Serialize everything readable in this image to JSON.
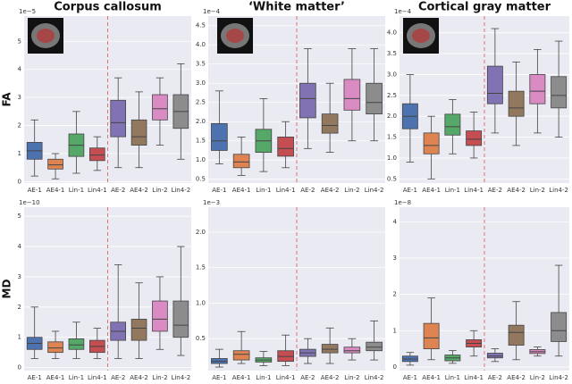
{
  "chart_data": [
    {
      "type": "box",
      "title": "Corpus callosum",
      "ylabel": "FA",
      "offset_label": "1e−5",
      "categories": [
        "AE-1",
        "AE4-1",
        "Lin-1",
        "Lin4-1",
        "AE-2",
        "AE4-2",
        "Lin-2",
        "Lin4-2"
      ],
      "colors": [
        "#4c72b0",
        "#dd8452",
        "#55a868",
        "#c44e52",
        "#8172b3",
        "#937860",
        "#da8bc3",
        "#8c8c8c"
      ],
      "whislo": [
        0.2,
        0.1,
        0.3,
        0.4,
        0.5,
        0.5,
        1.3,
        0.8
      ],
      "q1": [
        0.8,
        0.45,
        0.9,
        0.75,
        1.6,
        1.3,
        2.2,
        1.9
      ],
      "median": [
        1.1,
        0.6,
        1.3,
        0.95,
        2.1,
        1.6,
        2.6,
        2.5
      ],
      "q3": [
        1.4,
        0.8,
        1.7,
        1.2,
        2.9,
        2.2,
        3.1,
        3.1
      ],
      "whishi": [
        2.2,
        1.0,
        2.5,
        1.6,
        3.7,
        3.2,
        3.7,
        4.2
      ],
      "ylim": [
        -0.05,
        5.9
      ],
      "yticks": [
        0,
        1,
        2,
        3,
        4,
        5
      ],
      "grid": true
    },
    {
      "type": "box",
      "title": "‘White matter’",
      "offset_label": "1e−4",
      "categories": [
        "AE-1",
        "AE4-1",
        "Lin-1",
        "Lin4-1",
        "AE-2",
        "AE4-2",
        "Lin-2",
        "Lin4-2"
      ],
      "colors": [
        "#4c72b0",
        "#dd8452",
        "#55a868",
        "#c44e52",
        "#8172b3",
        "#937860",
        "#da8bc3",
        "#8c8c8c"
      ],
      "whislo": [
        0.9,
        0.6,
        0.7,
        0.8,
        1.3,
        1.2,
        1.5,
        1.5
      ],
      "q1": [
        1.25,
        0.8,
        1.2,
        1.1,
        2.1,
        1.7,
        2.3,
        2.2
      ],
      "median": [
        1.5,
        0.95,
        1.5,
        1.3,
        2.6,
        1.9,
        2.6,
        2.5
      ],
      "q3": [
        1.95,
        1.15,
        1.8,
        1.6,
        3.0,
        2.2,
        3.1,
        3.0
      ],
      "whishi": [
        2.8,
        1.6,
        2.6,
        2.0,
        3.9,
        3.0,
        3.9,
        3.9
      ],
      "ylim": [
        0.4,
        4.75
      ],
      "yticks": [
        {
          "value": 0.5,
          "label": "0.5"
        },
        {
          "value": 1,
          "label": "1.0"
        },
        1.5,
        {
          "value": 2,
          "label": "2.0"
        },
        2.5,
        {
          "value": 3,
          "label": "3.0"
        },
        3.5,
        {
          "value": 4,
          "label": "4.0"
        },
        4.5
      ],
      "grid": true
    },
    {
      "type": "box",
      "title": "Cortical gray matter",
      "offset_label": "1e−4",
      "categories": [
        "AE-1",
        "AE4-1",
        "Lin-1",
        "Lin4-1",
        "AE-2",
        "AE4-2",
        "Lin-2",
        "Lin4-2"
      ],
      "colors": [
        "#4c72b0",
        "#dd8452",
        "#55a868",
        "#c44e52",
        "#8172b3",
        "#937860",
        "#da8bc3",
        "#8c8c8c"
      ],
      "whislo": [
        0.9,
        0.5,
        1.1,
        1.0,
        1.6,
        1.3,
        1.6,
        1.5
      ],
      "q1": [
        1.7,
        1.1,
        1.55,
        1.3,
        2.3,
        2.0,
        2.3,
        2.2
      ],
      "median": [
        2.0,
        1.3,
        1.75,
        1.45,
        2.55,
        2.2,
        2.6,
        2.5
      ],
      "q3": [
        2.3,
        1.6,
        2.05,
        1.65,
        3.2,
        2.6,
        3.0,
        2.95
      ],
      "whishi": [
        3.0,
        2.0,
        2.4,
        2.1,
        4.1,
        3.3,
        3.6,
        3.8
      ],
      "ylim": [
        0.4,
        4.4
      ],
      "yticks": [
        {
          "value": 0.5,
          "label": "0.5"
        },
        {
          "value": 1,
          "label": "1.0"
        },
        1.5,
        {
          "value": 2,
          "label": "2.0"
        },
        2.5,
        {
          "value": 3,
          "label": "3.0"
        },
        3.5,
        {
          "value": 4,
          "label": "4.0"
        }
      ],
      "grid": true
    },
    {
      "type": "box",
      "ylabel": "MD",
      "offset_label": "1e−10",
      "categories": [
        "AE-1",
        "AE4-1",
        "Lin-1",
        "Lin4-1",
        "AE-2",
        "AE4-2",
        "Lin-2",
        "Lin4-2"
      ],
      "colors": [
        "#4c72b0",
        "#dd8452",
        "#55a868",
        "#c44e52",
        "#8172b3",
        "#937860",
        "#da8bc3",
        "#8c8c8c"
      ],
      "whislo": [
        0.3,
        0.3,
        0.3,
        0.3,
        0.3,
        0.3,
        0.6,
        0.4
      ],
      "q1": [
        0.6,
        0.5,
        0.6,
        0.5,
        0.9,
        0.9,
        1.2,
        1.0
      ],
      "median": [
        0.8,
        0.65,
        0.75,
        0.7,
        1.2,
        1.3,
        1.6,
        1.4
      ],
      "q3": [
        1.0,
        0.85,
        0.95,
        0.9,
        1.5,
        1.6,
        2.2,
        2.2
      ],
      "whishi": [
        2.0,
        1.2,
        1.5,
        1.3,
        3.4,
        2.8,
        3.0,
        4.0
      ],
      "ylim": [
        -0.1,
        5.3
      ],
      "yticks": [
        0,
        1,
        2,
        3,
        4,
        5
      ],
      "grid": true
    },
    {
      "type": "box",
      "offset_label": "1e−3",
      "categories": [
        "AE-1",
        "AE4-1",
        "Lin-1",
        "Lin4-1",
        "AE-2",
        "AE4-2",
        "Lin-2",
        "Lin4-2"
      ],
      "colors": [
        "#4c72b0",
        "#dd8452",
        "#55a868",
        "#c44e52",
        "#8172b3",
        "#937860",
        "#da8bc3",
        "#8c8c8c"
      ],
      "whislo": [
        0.1,
        0.15,
        0.12,
        0.12,
        0.15,
        0.15,
        0.2,
        0.2
      ],
      "q1": [
        0.15,
        0.2,
        0.17,
        0.18,
        0.25,
        0.3,
        0.3,
        0.33
      ],
      "median": [
        0.18,
        0.28,
        0.2,
        0.25,
        0.3,
        0.35,
        0.33,
        0.38
      ],
      "q3": [
        0.22,
        0.33,
        0.23,
        0.33,
        0.35,
        0.42,
        0.38,
        0.45
      ],
      "whishi": [
        0.35,
        0.6,
        0.32,
        0.55,
        0.5,
        0.65,
        0.5,
        0.75
      ],
      "ylim": [
        0.05,
        2.35
      ],
      "yticks": [
        {
          "value": 0.5,
          "label": "0.5"
        },
        {
          "value": 1,
          "label": "1.0"
        },
        1.5,
        {
          "value": 2,
          "label": "2.0"
        }
      ],
      "grid": true
    },
    {
      "type": "box",
      "offset_label": "1e−8",
      "categories": [
        "AE-1",
        "AE4-1",
        "Lin-1",
        "Lin4-1",
        "AE-2",
        "AE4-2",
        "Lin-2",
        "Lin4-2"
      ],
      "colors": [
        "#4c72b0",
        "#dd8452",
        "#55a868",
        "#c44e52",
        "#8172b3",
        "#937860",
        "#da8bc3",
        "#8c8c8c"
      ],
      "whislo": [
        0.05,
        0.2,
        0.1,
        0.3,
        0.15,
        0.2,
        0.3,
        0.3
      ],
      "q1": [
        0.15,
        0.5,
        0.17,
        0.55,
        0.25,
        0.6,
        0.37,
        0.7
      ],
      "median": [
        0.22,
        0.8,
        0.25,
        0.65,
        0.3,
        0.95,
        0.42,
        1.0
      ],
      "q3": [
        0.3,
        1.2,
        0.33,
        0.75,
        0.38,
        1.15,
        0.48,
        1.5
      ],
      "whishi": [
        0.4,
        1.9,
        0.45,
        1.0,
        0.5,
        1.8,
        0.55,
        2.8
      ],
      "ylim": [
        -0.1,
        4.4
      ],
      "yticks": [
        0,
        1,
        2,
        3,
        4
      ],
      "grid": true
    }
  ]
}
